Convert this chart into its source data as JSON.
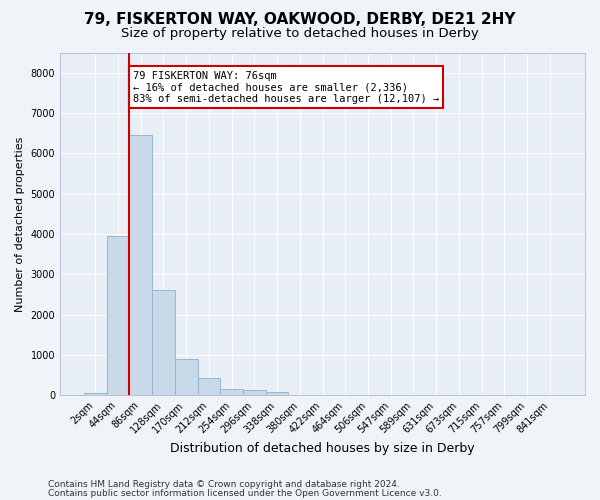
{
  "title1": "79, FISKERTON WAY, OAKWOOD, DERBY, DE21 2HY",
  "title2": "Size of property relative to detached houses in Derby",
  "xlabel": "Distribution of detached houses by size in Derby",
  "ylabel": "Number of detached properties",
  "categories": [
    "2sqm",
    "44sqm",
    "86sqm",
    "128sqm",
    "170sqm",
    "212sqm",
    "254sqm",
    "296sqm",
    "338sqm",
    "380sqm",
    "422sqm",
    "464sqm",
    "506sqm",
    "547sqm",
    "589sqm",
    "631sqm",
    "673sqm",
    "715sqm",
    "757sqm",
    "799sqm",
    "841sqm"
  ],
  "values": [
    50,
    3950,
    6450,
    2600,
    900,
    430,
    150,
    120,
    80,
    0,
    0,
    0,
    0,
    0,
    0,
    0,
    0,
    0,
    0,
    0,
    0
  ],
  "bar_color": "#c9d9ea",
  "bar_edge_color": "#8ab0cc",
  "marker_line_color": "#cc0000",
  "marker_bar_index": 2,
  "annotation_line1": "79 FISKERTON WAY: 76sqm",
  "annotation_line2": "← 16% of detached houses are smaller (2,336)",
  "annotation_line3": "83% of semi-detached houses are larger (12,107) →",
  "annotation_box_color": "white",
  "annotation_box_edge_color": "#cc0000",
  "ylim": [
    0,
    8500
  ],
  "yticks": [
    0,
    1000,
    2000,
    3000,
    4000,
    5000,
    6000,
    7000,
    8000
  ],
  "footer1": "Contains HM Land Registry data © Crown copyright and database right 2024.",
  "footer2": "Contains public sector information licensed under the Open Government Licence v3.0.",
  "bg_color": "#f0f4f8",
  "plot_bg_color": "#e8eef5",
  "grid_color": "white",
  "title1_fontsize": 11,
  "title2_fontsize": 9.5,
  "ylabel_fontsize": 8,
  "xlabel_fontsize": 9,
  "tick_fontsize": 7,
  "annotation_fontsize": 7.5,
  "footer_fontsize": 6.5
}
